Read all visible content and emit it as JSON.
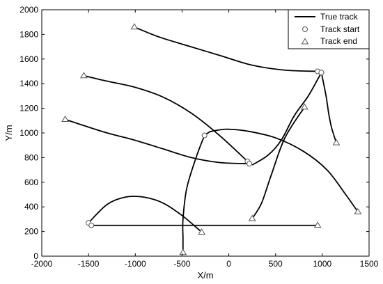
{
  "chart_data": {
    "type": "line",
    "title": "",
    "xlabel": "X/m",
    "ylabel": "Y/m",
    "xlim": [
      -2000,
      1500
    ],
    "ylim": [
      0,
      2000
    ],
    "xticks": [
      -2000,
      -1500,
      -1000,
      -500,
      0,
      500,
      1000,
      1500
    ],
    "yticks": [
      0,
      200,
      400,
      600,
      800,
      1000,
      1200,
      1400,
      1600,
      1800,
      2000
    ],
    "grid": false,
    "legend_position": "top-right",
    "legend": [
      {
        "label": "True track",
        "marker": "line"
      },
      {
        "label": "Track start",
        "marker": "circle"
      },
      {
        "label": "Track end",
        "marker": "triangle"
      }
    ],
    "tracks": [
      {
        "points": [
          [
            950,
            1500
          ],
          [
            600,
            1510
          ],
          [
            250,
            1550
          ],
          [
            -100,
            1630
          ],
          [
            -450,
            1710
          ],
          [
            -750,
            1780
          ],
          [
            -1010,
            1860
          ]
        ]
      },
      {
        "points": [
          [
            200,
            770
          ],
          [
            -100,
            980
          ],
          [
            -400,
            1160
          ],
          [
            -700,
            1290
          ],
          [
            -1000,
            1370
          ],
          [
            -1300,
            1420
          ],
          [
            -1550,
            1465
          ]
        ]
      },
      {
        "points": [
          [
            220,
            750
          ],
          [
            -100,
            760
          ],
          [
            -400,
            800
          ],
          [
            -700,
            870
          ],
          [
            -1000,
            940
          ],
          [
            -1300,
            1000
          ],
          [
            -1550,
            1060
          ],
          [
            -1750,
            1110
          ]
        ]
      },
      {
        "points": [
          [
            990,
            1490
          ],
          [
            1040,
            1300
          ],
          [
            1070,
            1150
          ],
          [
            1100,
            1040
          ],
          [
            1150,
            920
          ]
        ]
      },
      {
        "points": [
          [
            990,
            1490
          ],
          [
            850,
            1300
          ],
          [
            700,
            1140
          ],
          [
            560,
            940
          ],
          [
            420,
            820
          ],
          [
            250,
            740
          ]
        ]
      },
      {
        "points": [
          [
            810,
            1210
          ],
          [
            600,
            960
          ],
          [
            450,
            650
          ],
          [
            350,
            430
          ],
          [
            250,
            305
          ]
        ]
      },
      {
        "points": [
          [
            -260,
            980
          ],
          [
            -350,
            800
          ],
          [
            -450,
            550
          ],
          [
            -490,
            300
          ],
          [
            -490,
            150
          ],
          [
            -490,
            30
          ]
        ]
      },
      {
        "points": [
          [
            -260,
            980
          ],
          [
            -200,
            1010
          ],
          [
            -100,
            1025
          ],
          [
            0,
            1030
          ],
          [
            200,
            1015
          ],
          [
            500,
            960
          ],
          [
            800,
            850
          ],
          [
            1050,
            700
          ],
          [
            1250,
            500
          ],
          [
            1380,
            360
          ]
        ]
      },
      {
        "points": [
          [
            -1500,
            270
          ],
          [
            -1300,
            420
          ],
          [
            -1100,
            480
          ],
          [
            -900,
            478
          ],
          [
            -700,
            430
          ],
          [
            -500,
            330
          ],
          [
            -290,
            195
          ]
        ]
      },
      {
        "points": [
          [
            -1470,
            250
          ],
          [
            950,
            250
          ]
        ]
      }
    ],
    "starts": [
      [
        950,
        1500
      ],
      [
        990,
        1490
      ],
      [
        200,
        770
      ],
      [
        220,
        750
      ],
      [
        -260,
        980
      ],
      [
        -1500,
        270
      ],
      [
        -1470,
        250
      ]
    ],
    "ends": [
      [
        -1010,
        1860
      ],
      [
        -1550,
        1465
      ],
      [
        -1750,
        1110
      ],
      [
        1150,
        920
      ],
      [
        810,
        1210
      ],
      [
        250,
        305
      ],
      [
        -490,
        30
      ],
      [
        1380,
        360
      ],
      [
        -290,
        195
      ],
      [
        950,
        250
      ]
    ]
  }
}
